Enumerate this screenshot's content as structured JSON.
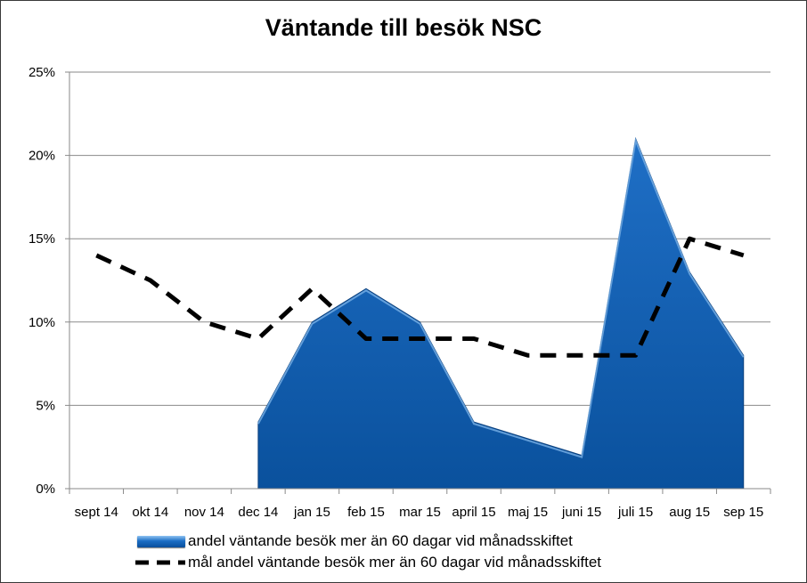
{
  "chart_data": {
    "type": "area",
    "title": "Väntande till besök NSC",
    "categories": [
      "sept 14",
      "okt 14",
      "nov 14",
      "dec 14",
      "jan 15",
      "feb 15",
      "mar 15",
      "april 15",
      "maj 15",
      "juni 15",
      "juli 15",
      "aug 15",
      "sep 15"
    ],
    "y_ticks": [
      "0%",
      "5%",
      "10%",
      "15%",
      "20%",
      "25%"
    ],
    "ylim": [
      0,
      25
    ],
    "grid": true,
    "legend_position": "bottom",
    "series": [
      {
        "name": "andel väntande besök mer än 60 dagar vid månadsskiftet",
        "type": "area",
        "color": "#0f5fb5",
        "values": [
          null,
          null,
          null,
          4,
          10,
          12,
          10,
          4,
          3,
          2,
          21,
          13,
          8
        ]
      },
      {
        "name": "mål andel  väntande besök mer än 60 dagar vid månadsskiftet",
        "type": "line",
        "style": "dashed",
        "color": "#000000",
        "values": [
          14,
          12.5,
          10,
          9,
          12,
          9,
          9,
          9,
          8,
          8,
          8,
          15,
          14
        ]
      }
    ]
  }
}
